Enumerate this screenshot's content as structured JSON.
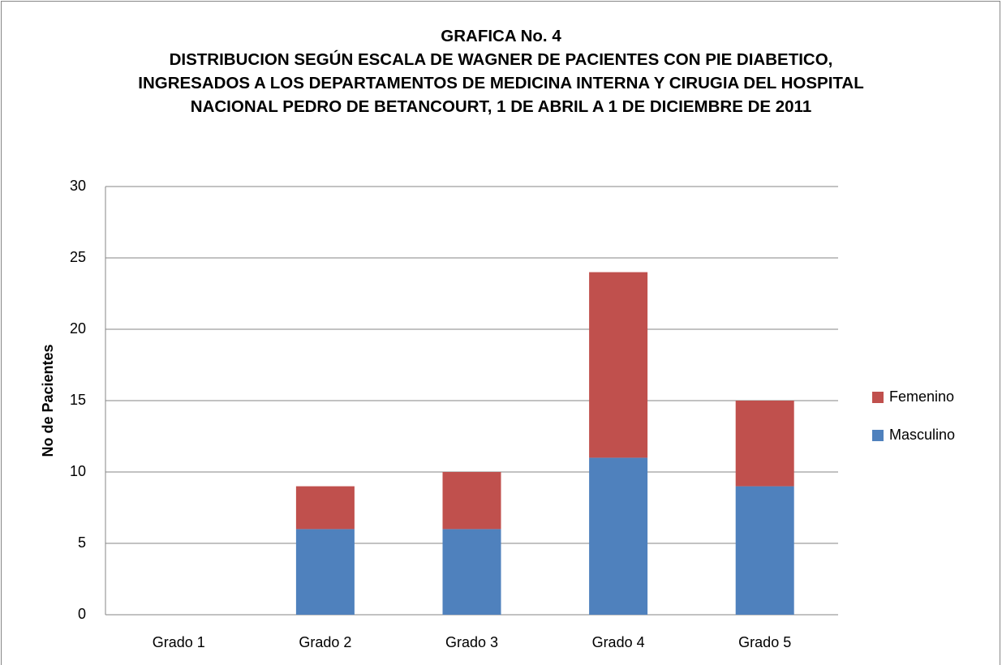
{
  "chart_data": {
    "type": "stacked_bar",
    "title": "GRAFICA  No. 4",
    "subtitle": "DISTRIBUCION SEGÚN ESCALA DE WAGNER DE PACIENTES CON PIE DIABETICO, INGRESADOS A LOS DEPARTAMENTOS DE MEDICINA INTERNA Y CIRUGIA DEL HOSPITAL NACIONAL PEDRO DE BETANCOURT, 1 DE ABRIL A 1 DE DICIEMBRE DE 2011",
    "y_label": "No de Pacientes",
    "categories": [
      "Grado 1",
      "Grado 2",
      "Grado 3",
      "Grado 4",
      "Grado 5"
    ],
    "series": [
      {
        "name": "Masculino",
        "color": "#4f81bd",
        "values": [
          0,
          6,
          6,
          11,
          9
        ]
      },
      {
        "name": "Femenino",
        "color": "#c0504d",
        "values": [
          0,
          3,
          4,
          13,
          6
        ]
      }
    ],
    "ylim": [
      0,
      30
    ],
    "yticks": [
      0,
      5,
      10,
      15,
      20,
      25,
      30
    ],
    "grid": true,
    "legend": "right"
  }
}
